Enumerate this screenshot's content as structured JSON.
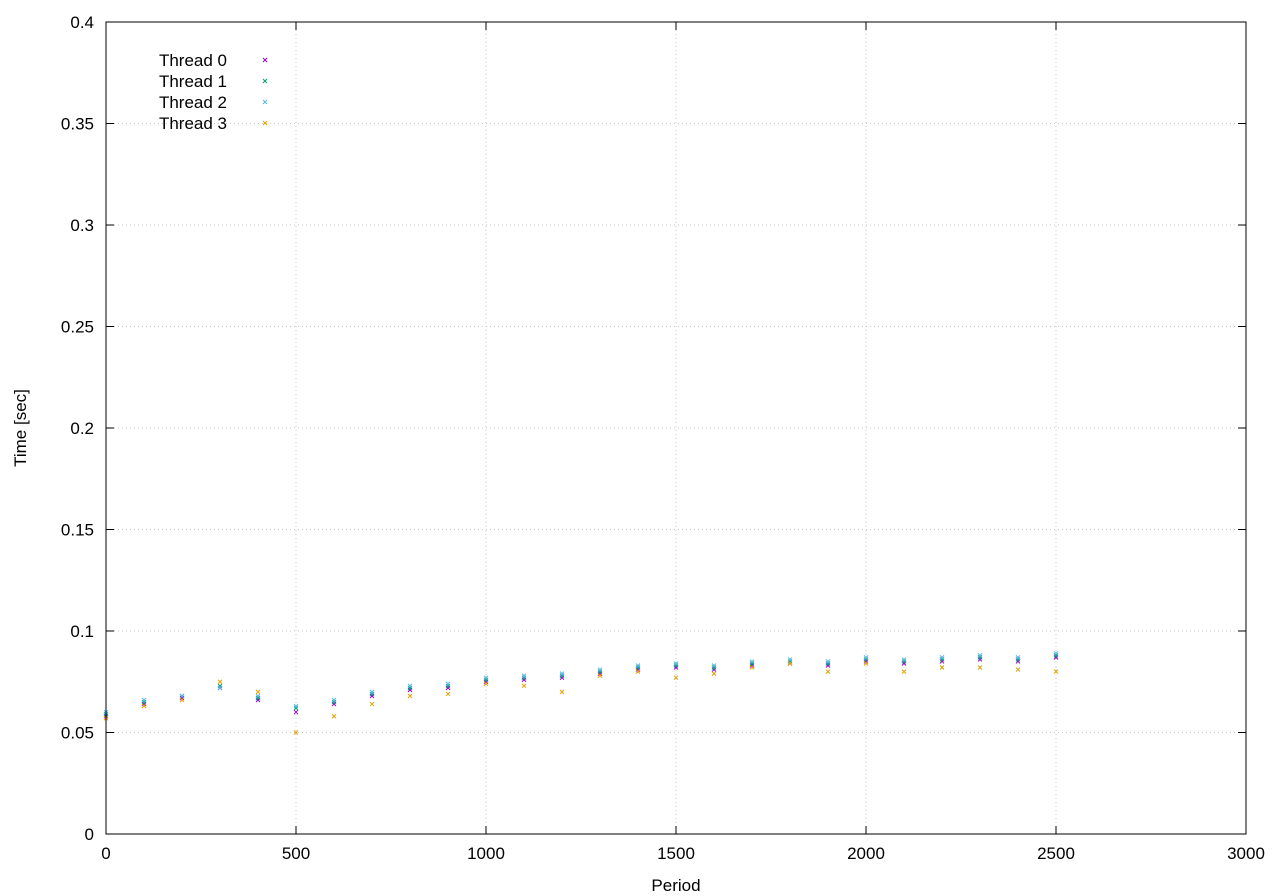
{
  "chart_data": {
    "type": "scatter",
    "title": "",
    "xlabel": "Period",
    "ylabel": "Time [sec]",
    "xlim": [
      0,
      3000
    ],
    "ylim": [
      0,
      0.4
    ],
    "xticks": [
      0,
      500,
      1000,
      1500,
      2000,
      2500,
      3000
    ],
    "xtick_labels": [
      "0",
      "500",
      "1000",
      "1500",
      "2000",
      "2500",
      "3000"
    ],
    "yticks": [
      0,
      0.05,
      0.1,
      0.15,
      0.2,
      0.25,
      0.3,
      0.35,
      0.4
    ],
    "ytick_labels": [
      "0",
      "0.05",
      "0.1",
      "0.15",
      "0.2",
      "0.25",
      "0.3",
      "0.35",
      "0.4"
    ],
    "grid": true,
    "legend_position": "top-left",
    "series": [
      {
        "name": "Thread 0",
        "color": "#9400d3",
        "x": [
          0,
          100,
          200,
          300,
          400,
          500,
          600,
          700,
          800,
          900,
          1000,
          1100,
          1200,
          1300,
          1400,
          1500,
          1600,
          1700,
          1800,
          1900,
          2000,
          2100,
          2200,
          2300,
          2400,
          2500
        ],
        "y": [
          0.058,
          0.064,
          0.067,
          0.072,
          0.066,
          0.06,
          0.064,
          0.068,
          0.071,
          0.072,
          0.075,
          0.076,
          0.077,
          0.079,
          0.081,
          0.082,
          0.081,
          0.083,
          0.084,
          0.083,
          0.085,
          0.084,
          0.085,
          0.086,
          0.085,
          0.087
        ]
      },
      {
        "name": "Thread 1",
        "color": "#009e73",
        "x": [
          0,
          100,
          200,
          300,
          400,
          500,
          600,
          700,
          800,
          900,
          1000,
          1100,
          1200,
          1300,
          1400,
          1500,
          1600,
          1700,
          1800,
          1900,
          2000,
          2100,
          2200,
          2300,
          2400,
          2500
        ],
        "y": [
          0.059,
          0.065,
          0.068,
          0.073,
          0.067,
          0.062,
          0.065,
          0.069,
          0.072,
          0.073,
          0.076,
          0.077,
          0.078,
          0.08,
          0.082,
          0.083,
          0.082,
          0.084,
          0.085,
          0.084,
          0.086,
          0.085,
          0.086,
          0.087,
          0.086,
          0.088
        ]
      },
      {
        "name": "Thread 2",
        "color": "#56b4e9",
        "x": [
          0,
          100,
          200,
          300,
          400,
          500,
          600,
          700,
          800,
          900,
          1000,
          1100,
          1200,
          1300,
          1400,
          1500,
          1600,
          1700,
          1800,
          1900,
          2000,
          2100,
          2200,
          2300,
          2400,
          2500
        ],
        "y": [
          0.06,
          0.066,
          0.068,
          0.072,
          0.068,
          0.063,
          0.066,
          0.07,
          0.073,
          0.074,
          0.077,
          0.078,
          0.079,
          0.081,
          0.083,
          0.084,
          0.083,
          0.085,
          0.086,
          0.085,
          0.087,
          0.086,
          0.087,
          0.088,
          0.087,
          0.089
        ]
      },
      {
        "name": "Thread 3",
        "color": "#e69f00",
        "x": [
          0,
          100,
          200,
          300,
          400,
          500,
          600,
          700,
          800,
          900,
          1000,
          1100,
          1200,
          1300,
          1400,
          1500,
          1600,
          1700,
          1800,
          1900,
          2000,
          2100,
          2200,
          2300,
          2400,
          2500
        ],
        "y": [
          0.057,
          0.063,
          0.066,
          0.075,
          0.07,
          0.05,
          0.058,
          0.064,
          0.068,
          0.069,
          0.074,
          0.073,
          0.07,
          0.078,
          0.08,
          0.077,
          0.079,
          0.082,
          0.084,
          0.08,
          0.084,
          0.08,
          0.082,
          0.082,
          0.081,
          0.08
        ]
      }
    ]
  }
}
